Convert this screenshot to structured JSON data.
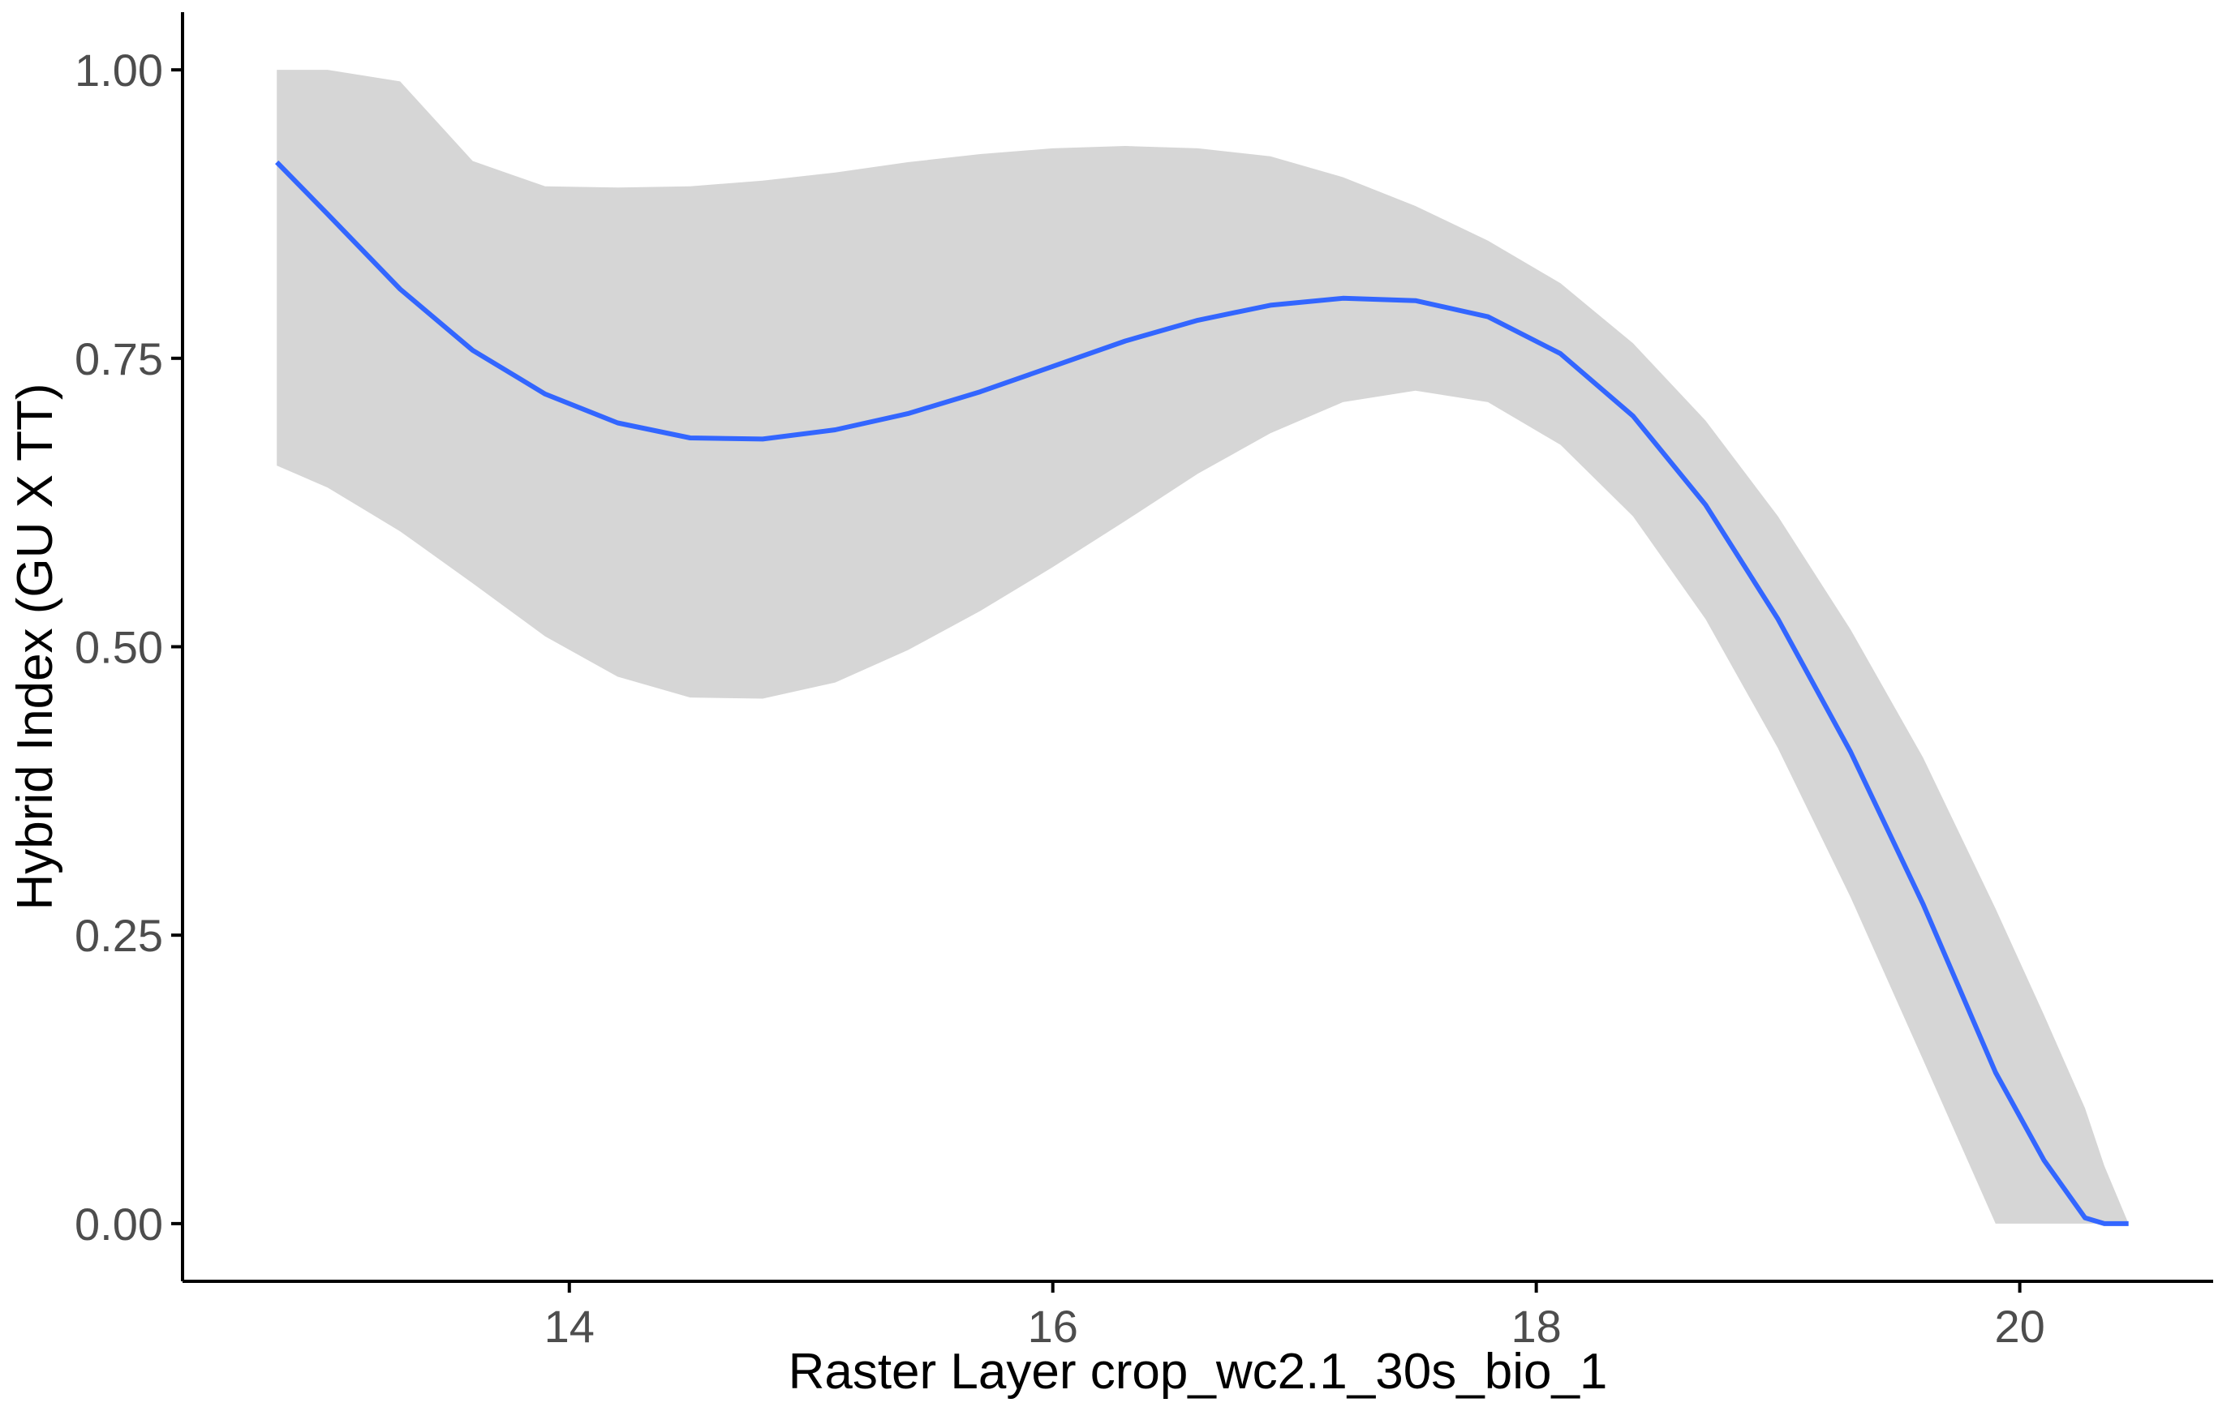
{
  "chart_data": {
    "type": "line",
    "title": "",
    "xlabel": "Raster Layer crop_wc2.1_30s_bio_1",
    "ylabel": "Hybrid Index (GU X TT)",
    "xlim": [
      12.4,
      20.8
    ],
    "ylim": [
      -0.05,
      1.05
    ],
    "x_ticks": [
      14,
      16,
      18,
      20
    ],
    "x_tick_labels": [
      "14",
      "16",
      "18",
      "20"
    ],
    "y_ticks": [
      0,
      0.25,
      0.5,
      0.75,
      1.0
    ],
    "y_tick_labels": [
      "0.00",
      "0.25",
      "0.50",
      "0.75",
      "1.00"
    ],
    "grid": false,
    "colors": {
      "line": "#3366FF",
      "ribbon": "#D6D6D6",
      "axis": "#000000",
      "tick_text": "#4D4D4D"
    },
    "series": [
      {
        "x": [
          12.79,
          13.0,
          13.3,
          13.6,
          13.9,
          14.2,
          14.5,
          14.8,
          15.1,
          15.4,
          15.7,
          16.0,
          16.3,
          16.6,
          16.9,
          17.2,
          17.5,
          17.8,
          18.1,
          18.4,
          18.7,
          19.0,
          19.3,
          19.6,
          19.9,
          20.1,
          20.27,
          20.35,
          20.45
        ],
        "y": [
          0.92,
          0.875,
          0.81,
          0.757,
          0.719,
          0.694,
          0.681,
          0.68,
          0.688,
          0.702,
          0.721,
          0.743,
          0.765,
          0.783,
          0.796,
          0.802,
          0.8,
          0.786,
          0.754,
          0.7,
          0.623,
          0.524,
          0.409,
          0.277,
          0.131,
          0.055,
          0.005,
          0.0,
          0.0
        ],
        "lower": [
          0.657,
          0.638,
          0.6,
          0.555,
          0.509,
          0.474,
          0.456,
          0.455,
          0.469,
          0.497,
          0.531,
          0.569,
          0.609,
          0.65,
          0.685,
          0.712,
          0.722,
          0.712,
          0.675,
          0.613,
          0.524,
          0.412,
          0.283,
          0.142,
          0.0,
          0.0,
          0.0,
          0.0,
          0.0
        ],
        "upper": [
          1.0,
          1.0,
          0.99,
          0.921,
          0.899,
          0.898,
          0.899,
          0.904,
          0.911,
          0.92,
          0.927,
          0.932,
          0.934,
          0.932,
          0.925,
          0.907,
          0.882,
          0.852,
          0.815,
          0.763,
          0.696,
          0.613,
          0.515,
          0.404,
          0.273,
          0.181,
          0.1,
          0.05,
          0.0
        ]
      }
    ]
  }
}
